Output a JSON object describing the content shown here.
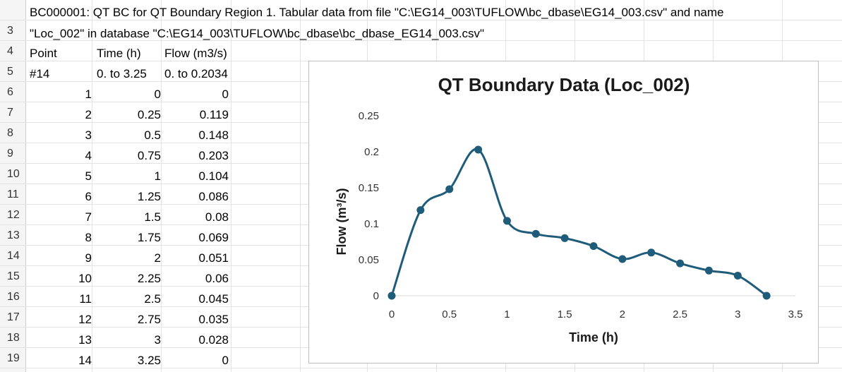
{
  "sheet": {
    "header_line1": "BC000001: QT BC for QT Boundary Region 1.  Tabular data from file \"C:\\EG14_003\\TUFLOW\\bc_dbase\\EG14_003.csv\" and name",
    "header_line2": "\"Loc_002\" in database \"C:\\EG14_003\\TUFLOW\\bc_dbase\\bc_dbase_EG14_003.csv\"",
    "col_headers": [
      "Point",
      "Time (h)",
      "Flow (m3/s)"
    ],
    "range_row": [
      "#14",
      "0. to 3.25",
      "0. to 0.2034"
    ],
    "row_numbers": [
      "",
      "3",
      "4",
      "5",
      "6",
      "7",
      "8",
      "9",
      "10",
      "11",
      "12",
      "13",
      "14",
      "15",
      "16",
      "17",
      "18",
      "19"
    ],
    "rows": [
      [
        "1",
        "0",
        "0"
      ],
      [
        "2",
        "0.25",
        "0.119"
      ],
      [
        "3",
        "0.5",
        "0.148"
      ],
      [
        "4",
        "0.75",
        "0.203"
      ],
      [
        "5",
        "1",
        "0.104"
      ],
      [
        "6",
        "1.25",
        "0.086"
      ],
      [
        "7",
        "1.5",
        "0.08"
      ],
      [
        "8",
        "1.75",
        "0.069"
      ],
      [
        "9",
        "2",
        "0.051"
      ],
      [
        "10",
        "2.25",
        "0.06"
      ],
      [
        "11",
        "2.5",
        "0.045"
      ],
      [
        "12",
        "2.75",
        "0.035"
      ],
      [
        "13",
        "3",
        "0.028"
      ],
      [
        "14",
        "3.25",
        "0"
      ]
    ]
  },
  "chart_data": {
    "type": "scatter",
    "title": "QT Boundary Data (Loc_002)",
    "xlabel": "Time (h)",
    "ylabel": "Flow (m³/s)",
    "xlim": [
      0,
      3.5
    ],
    "ylim": [
      0,
      0.25
    ],
    "xticks": [
      "0",
      "0.5",
      "1",
      "1.5",
      "2",
      "2.5",
      "3",
      "3.5"
    ],
    "yticks": [
      "0",
      "0.05",
      "0.1",
      "0.15",
      "0.2",
      "0.25"
    ],
    "smooth_line": true,
    "grid": false,
    "legend": "none",
    "series_color": "#1f5c79",
    "x": [
      0,
      0.25,
      0.5,
      0.75,
      1,
      1.25,
      1.5,
      1.75,
      2,
      2.25,
      2.5,
      2.75,
      3,
      3.25
    ],
    "y": [
      0,
      0.119,
      0.148,
      0.203,
      0.104,
      0.086,
      0.08,
      0.069,
      0.051,
      0.06,
      0.045,
      0.035,
      0.028,
      0
    ]
  }
}
